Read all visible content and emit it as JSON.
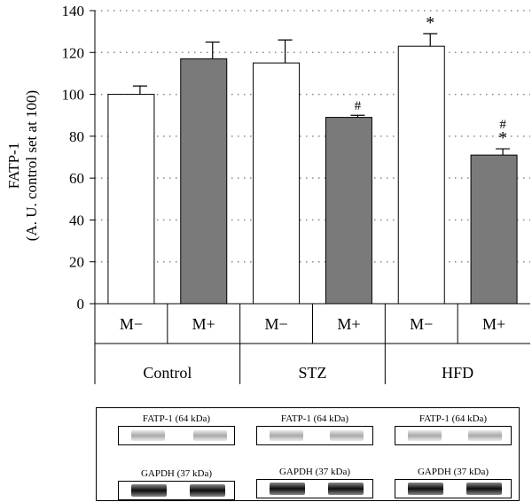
{
  "chart_data": {
    "type": "bar",
    "ylabel_line1": "FATP-1",
    "ylabel_line2": "(A. U. control set at 100)",
    "ylim": [
      0,
      140
    ],
    "yticks": [
      "0",
      "20",
      "40",
      "60",
      "80",
      "100",
      "120",
      "140"
    ],
    "groups": [
      {
        "label": "Control",
        "bars": [
          {
            "label": "M−",
            "value": 100,
            "error": 4,
            "fill": "#ffffff",
            "annotations": []
          },
          {
            "label": "M+",
            "value": 117,
            "error": 8,
            "fill": "#7a7a7a",
            "annotations": []
          }
        ]
      },
      {
        "label": "STZ",
        "bars": [
          {
            "label": "M−",
            "value": 115,
            "error": 11,
            "fill": "#ffffff",
            "annotations": []
          },
          {
            "label": "M+",
            "value": 89,
            "error": 1,
            "fill": "#7a7a7a",
            "annotations": [
              "#"
            ]
          }
        ]
      },
      {
        "label": "HFD",
        "bars": [
          {
            "label": "M−",
            "value": 123,
            "error": 6,
            "fill": "#ffffff",
            "annotations": [
              "*"
            ]
          },
          {
            "label": "M+",
            "value": 71,
            "error": 3,
            "fill": "#7a7a7a",
            "annotations": [
              "#",
              "*"
            ]
          }
        ]
      }
    ],
    "grid": "horizontal-dotted"
  },
  "blots": [
    {
      "top_label": "FATP-1 (64 kDa)",
      "bottom_label": "GAPDH (37 kDa)"
    },
    {
      "top_label": "FATP-1 (64 kDa)",
      "bottom_label": "GAPDH (37 kDa)"
    },
    {
      "top_label": "FATP-1 (64 kDa)",
      "bottom_label": "GAPDH (37 kDa)"
    }
  ],
  "colors": {
    "filled_bar": "#7a7a7a",
    "empty_bar": "#ffffff",
    "grid": "#888888"
  }
}
